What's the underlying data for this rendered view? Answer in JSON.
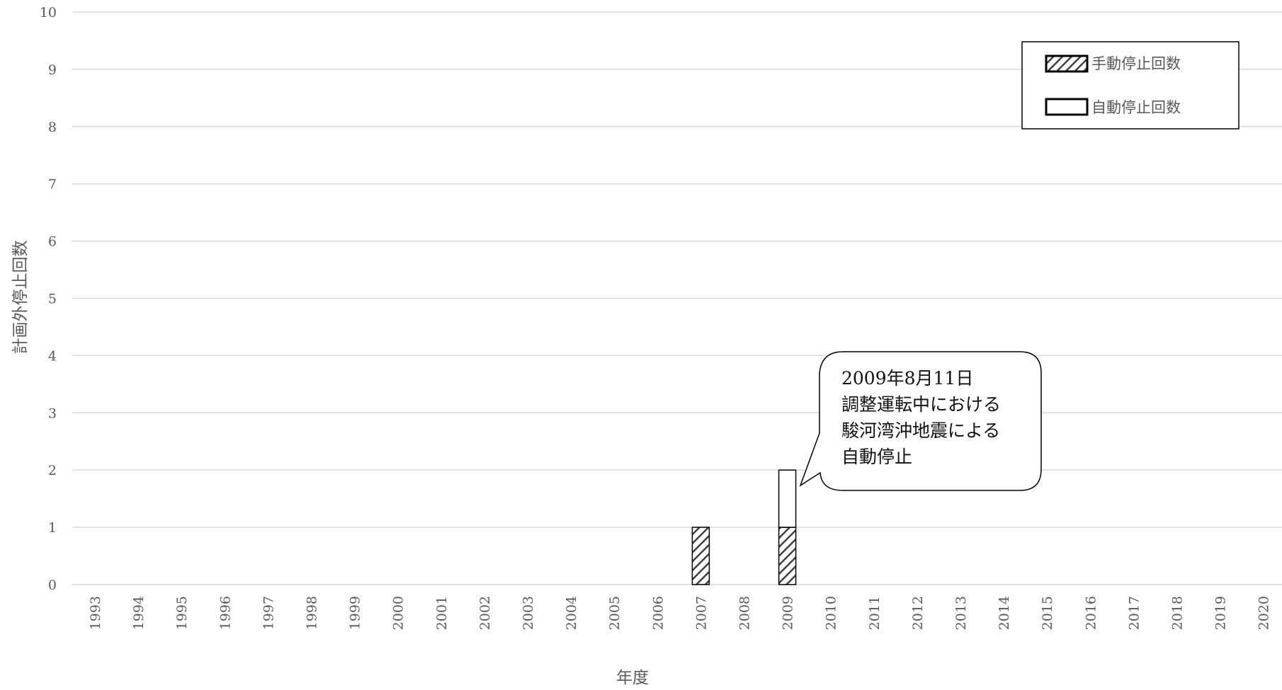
{
  "chart_data": {
    "type": "bar",
    "stacked": true,
    "xlabel": "年度",
    "ylabel": "計画外停止回数",
    "ylim": [
      0,
      10
    ],
    "yticks": [
      0,
      1,
      2,
      3,
      4,
      5,
      6,
      7,
      8,
      9,
      10
    ],
    "grid": true,
    "legend_position": "top-right",
    "categories": [
      "1993",
      "1994",
      "1995",
      "1996",
      "1997",
      "1998",
      "1999",
      "2000",
      "2001",
      "2002",
      "2003",
      "2004",
      "2005",
      "2006",
      "2007",
      "2008",
      "2009",
      "2010",
      "2011",
      "2012",
      "2013",
      "2014",
      "2015",
      "2016",
      "2017",
      "2018",
      "2019",
      "2020"
    ],
    "series": [
      {
        "name": "手動停止回数",
        "pattern": "diagonal-hatch",
        "color": "#404040",
        "values": [
          0,
          0,
          0,
          0,
          0,
          0,
          0,
          0,
          0,
          0,
          0,
          0,
          0,
          0,
          1,
          0,
          1,
          0,
          0,
          0,
          0,
          0,
          0,
          0,
          0,
          0,
          0,
          0
        ]
      },
      {
        "name": "自動停止回数",
        "pattern": "none",
        "color": "#ffffff",
        "values": [
          0,
          0,
          0,
          0,
          0,
          0,
          0,
          0,
          0,
          0,
          0,
          0,
          0,
          0,
          0,
          0,
          1,
          0,
          0,
          0,
          0,
          0,
          0,
          0,
          0,
          0,
          0,
          0
        ]
      }
    ],
    "annotations": [
      {
        "category": "2009",
        "lines": [
          "2009年8月11日",
          "調整運転中における",
          "駿河湾沖地震による",
          "自動停止"
        ]
      }
    ]
  },
  "colors": {
    "grid": "#d9d9d9",
    "text": "#595959",
    "bar_border": "#000000",
    "hatch": "#404040"
  }
}
